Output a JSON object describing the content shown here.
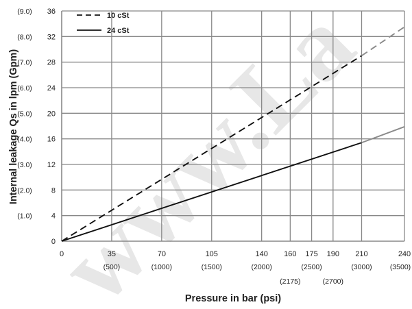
{
  "chart_data": {
    "type": "line",
    "xlabel": "Pressure in bar (psi)",
    "ylabel": "Internal leakage Qs in lpm (Gpm)",
    "xlim": [
      0,
      240
    ],
    "ylim": [
      0,
      36
    ],
    "grid": true,
    "legend_position": "top-left",
    "x_ticks": [
      {
        "value": 0,
        "label": "0",
        "sub": ""
      },
      {
        "value": 35,
        "label": "35",
        "sub": "(500)"
      },
      {
        "value": 70,
        "label": "70",
        "sub": "(1000)"
      },
      {
        "value": 105,
        "label": "105",
        "sub": "(1500)"
      },
      {
        "value": 140,
        "label": "140",
        "sub": "(2000)"
      },
      {
        "value": 160,
        "label": "160",
        "sub": "(2175)"
      },
      {
        "value": 175,
        "label": "175",
        "sub": "(2500)"
      },
      {
        "value": 190,
        "label": "190",
        "sub": "(2700)"
      },
      {
        "value": 210,
        "label": "210",
        "sub": "(3000)"
      },
      {
        "value": 240,
        "label": "240",
        "sub": "(3500)"
      }
    ],
    "y_ticks": [
      {
        "value": 0,
        "label": "0",
        "sub": ""
      },
      {
        "value": 4,
        "label": "4",
        "sub": "(1.0)"
      },
      {
        "value": 8,
        "label": "8",
        "sub": "(2.0)"
      },
      {
        "value": 12,
        "label": "12",
        "sub": "(3.0)"
      },
      {
        "value": 16,
        "label": "16",
        "sub": "(4.0)"
      },
      {
        "value": 20,
        "label": "20",
        "sub": "(5.0)"
      },
      {
        "value": 24,
        "label": "24",
        "sub": "(6.0)"
      },
      {
        "value": 28,
        "label": "28",
        "sub": "(7.0)"
      },
      {
        "value": 32,
        "label": "32",
        "sub": "(8.0)"
      },
      {
        "value": 36,
        "label": "36",
        "sub": "(9.0)"
      }
    ],
    "series": [
      {
        "name": "10 cSt",
        "style": "dashed",
        "color": "#111111",
        "extension_color": "#8a8a8a",
        "x": [
          0,
          210,
          240
        ],
        "y": [
          0,
          29,
          33.5
        ]
      },
      {
        "name": "24 cSt",
        "style": "solid",
        "color": "#111111",
        "extension_color": "#8a8a8a",
        "x": [
          0,
          210,
          240
        ],
        "y": [
          0,
          15.4,
          17.9
        ]
      }
    ]
  },
  "watermark": "www.La"
}
